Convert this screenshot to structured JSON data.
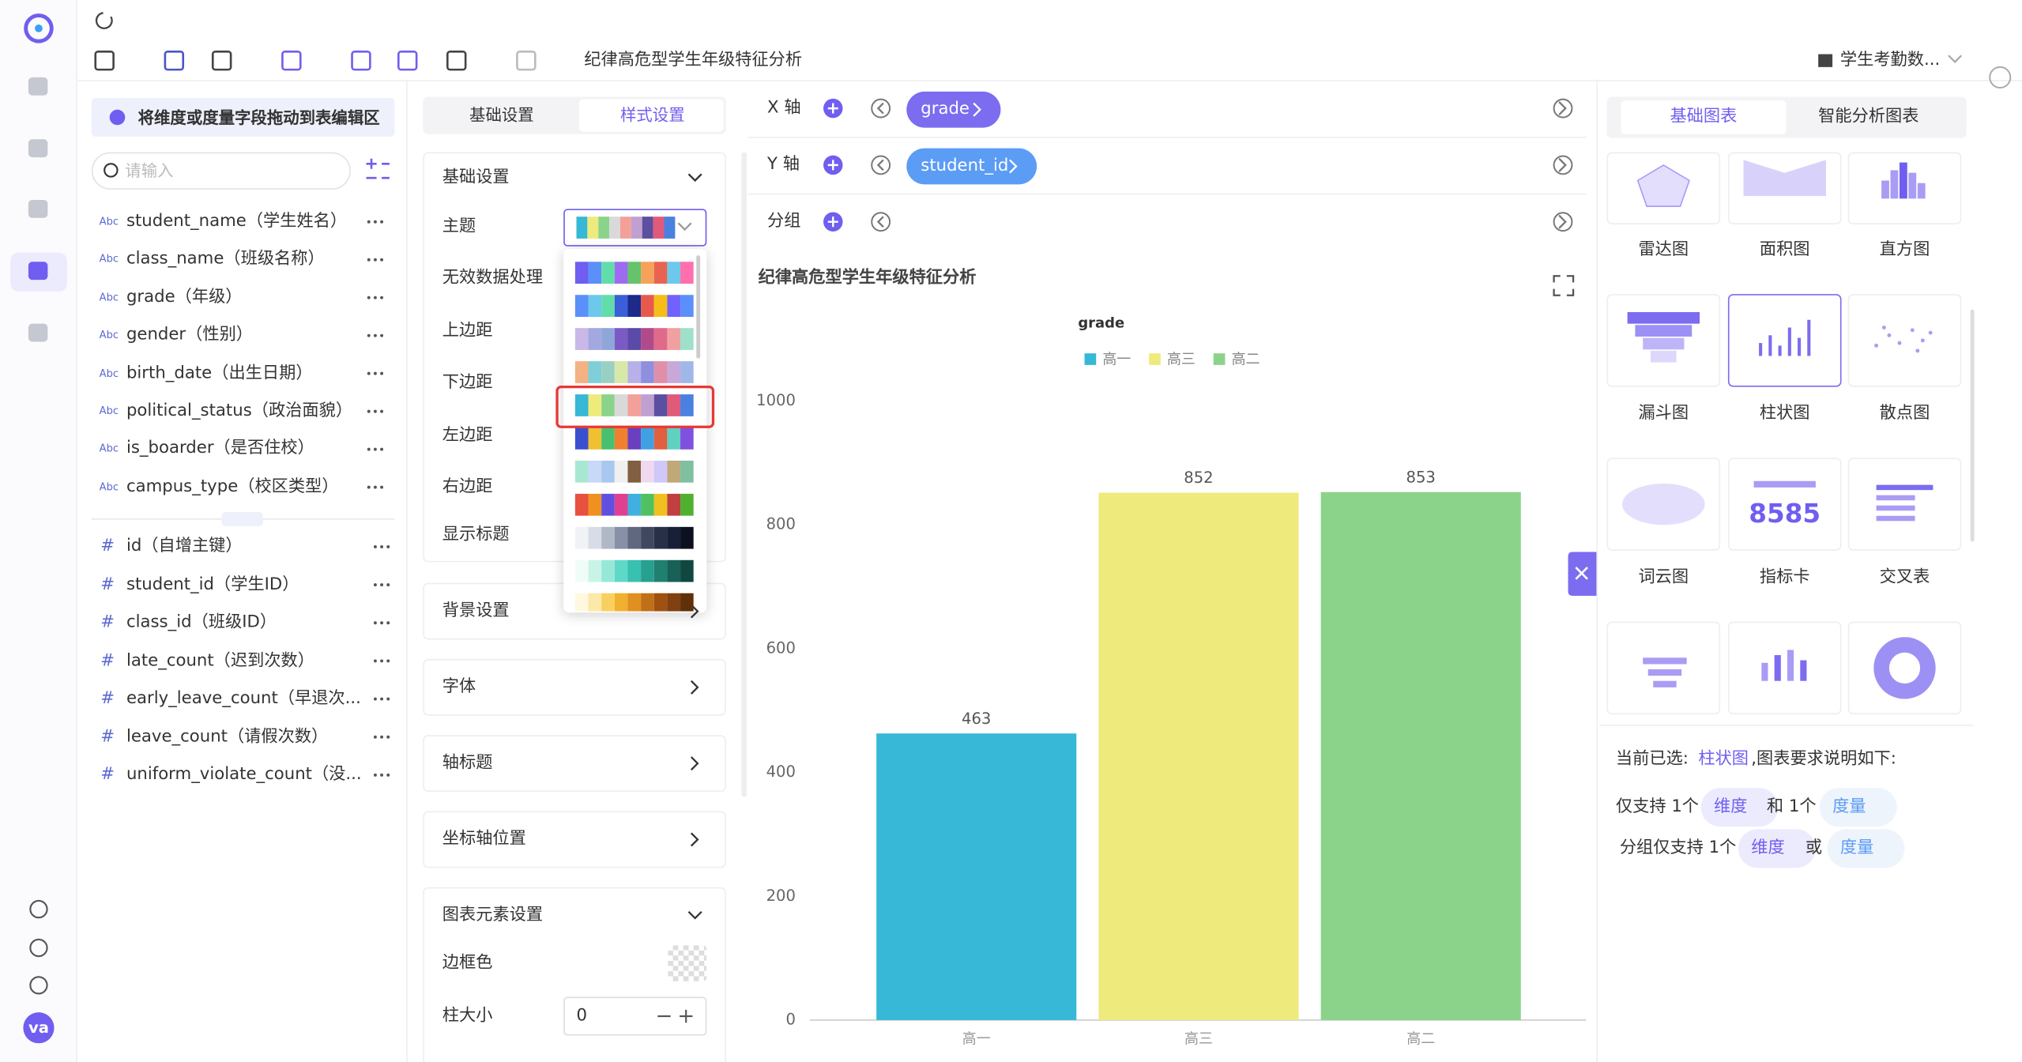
{
  "toolbar": {
    "title": "纪律高危型学生年级特征分析",
    "dataset": "学生考勤数..."
  },
  "sidebar": {
    "avatar": "va"
  },
  "fields": {
    "hint": "将维度或度量字段拖动到表编辑区",
    "search_placeholder": "请输入",
    "dimension_tag": "Abc",
    "dimensions": [
      "student_name（学生姓名）",
      "class_name（班级名称）",
      "grade（年级）",
      "gender（性别）",
      "birth_date（出生日期）",
      "political_status（政治面貌）",
      "is_boarder（是否住校）",
      "campus_type（校区类型）"
    ],
    "measure_tag": "#",
    "measures": [
      "id（自增主键）",
      "student_id（学生ID）",
      "class_id（班级ID）",
      "late_count（迟到次数）",
      "early_leave_count（早退次...",
      "leave_count（请假次数）",
      "uniform_violate_count（没..."
    ]
  },
  "style_panel": {
    "tabs": [
      "基础设置",
      "样式设置"
    ],
    "basic_title": "基础设置",
    "rows": [
      "主题",
      "无效数据处理",
      "上边距",
      "下边距",
      "左边距",
      "右边距",
      "显示标题"
    ],
    "sections": [
      "背景设置",
      "字体",
      "轴标题",
      "坐标轴位置"
    ],
    "element_title": "图表元素设置",
    "element_rows": [
      "边框色",
      "柱大小"
    ],
    "bar_size": 0,
    "selected_palette": 4,
    "palettes": [
      [
        "#6f5ef0",
        "#5b8ff9",
        "#61ddaa",
        "#9d6bf2",
        "#65c36b",
        "#f6a25b",
        "#e86452",
        "#6dc8ec",
        "#ff6fae"
      ],
      [
        "#5b8ff9",
        "#6dc8ec",
        "#61ddaa",
        "#3a5fd9",
        "#1d2a8a",
        "#e8584d",
        "#f6bd16",
        "#7262fd",
        "#5b8ff9"
      ],
      [
        "#c9b8e8",
        "#a3a8e0",
        "#8fa6d9",
        "#7a5bc4",
        "#5b4aa8",
        "#b04a8a",
        "#e06a8a",
        "#f0a0a0",
        "#9ee0c8"
      ],
      [
        "#f4b183",
        "#7ecfd8",
        "#9ad0c2",
        "#d8e8a8",
        "#b8b0e8",
        "#8f8fe0",
        "#e08fa8",
        "#c8a8d8",
        "#a0b8e8"
      ],
      [
        "#36b8d6",
        "#efea7c",
        "#8bd38a",
        "#d9d9d9",
        "#f4a09a",
        "#c0a0d0",
        "#5a4fa0",
        "#e05a7a",
        "#4a80e0"
      ],
      [
        "#3a4fd0",
        "#f0c030",
        "#48c070",
        "#f08030",
        "#6a40c0",
        "#40a0e0",
        "#e06040",
        "#60d0c0",
        "#8050e0"
      ],
      [
        "#a8e8d0",
        "#c8d8f8",
        "#a8c8f0",
        "#f0f0f0",
        "#806040",
        "#f0d8f0",
        "#d0c8f8",
        "#c0a878",
        "#80c0a0"
      ],
      [
        "#e85040",
        "#f09020",
        "#6050e0",
        "#e04090",
        "#40b0e0",
        "#50c060",
        "#f0c020",
        "#c04040",
        "#50b030"
      ],
      [
        "#f0f2f5",
        "#d8dce6",
        "#b0b8c8",
        "#8890a8",
        "#606880",
        "#404860",
        "#283048",
        "#182038",
        "#0c1020"
      ],
      [
        "#f0fcf8",
        "#c8f4e8",
        "#98e8d8",
        "#60d8c8",
        "#38c0b0",
        "#28a090",
        "#208070",
        "#186058",
        "#104840"
      ],
      [
        "#fff8e0",
        "#fce8a8",
        "#f8d060",
        "#f0b030",
        "#e09020",
        "#c07018",
        "#a05010",
        "#804010",
        "#603008"
      ]
    ]
  },
  "axes": {
    "rows": [
      {
        "label": "X 轴",
        "field": "grade"
      },
      {
        "label": "Y 轴",
        "field": "student_id"
      },
      {
        "label": "分组"
      }
    ]
  },
  "chart_data": {
    "type": "bar",
    "title": "纪律高危型学生年级特征分析",
    "legend_title": "grade",
    "categories": [
      "高一",
      "高三",
      "高二"
    ],
    "values": [
      463,
      852,
      853
    ],
    "colors": [
      "#36b8d6",
      "#efea7c",
      "#8bd38a"
    ],
    "ylim": [
      0,
      1000
    ],
    "yticks": [
      0,
      200,
      400,
      600,
      800,
      1000
    ],
    "grid": false
  },
  "chart_types": {
    "tabs": [
      "基础图表",
      "智能分析图表"
    ],
    "items": [
      "雷达图",
      "面积图",
      "直方图",
      "漏斗图",
      "柱状图",
      "散点图",
      "词云图",
      "指标卡",
      "交叉表"
    ],
    "selected": 4,
    "metric_sample": "8585"
  },
  "description": {
    "prefix": "当前已选:",
    "selected": "柱状图",
    "suffix": ",图表要求说明如下:",
    "line1": [
      "仅支持 1个",
      "维度",
      "和 1个",
      "度量"
    ],
    "line2": [
      "分组仅支持 1个",
      "维度",
      "或",
      "度量"
    ]
  }
}
